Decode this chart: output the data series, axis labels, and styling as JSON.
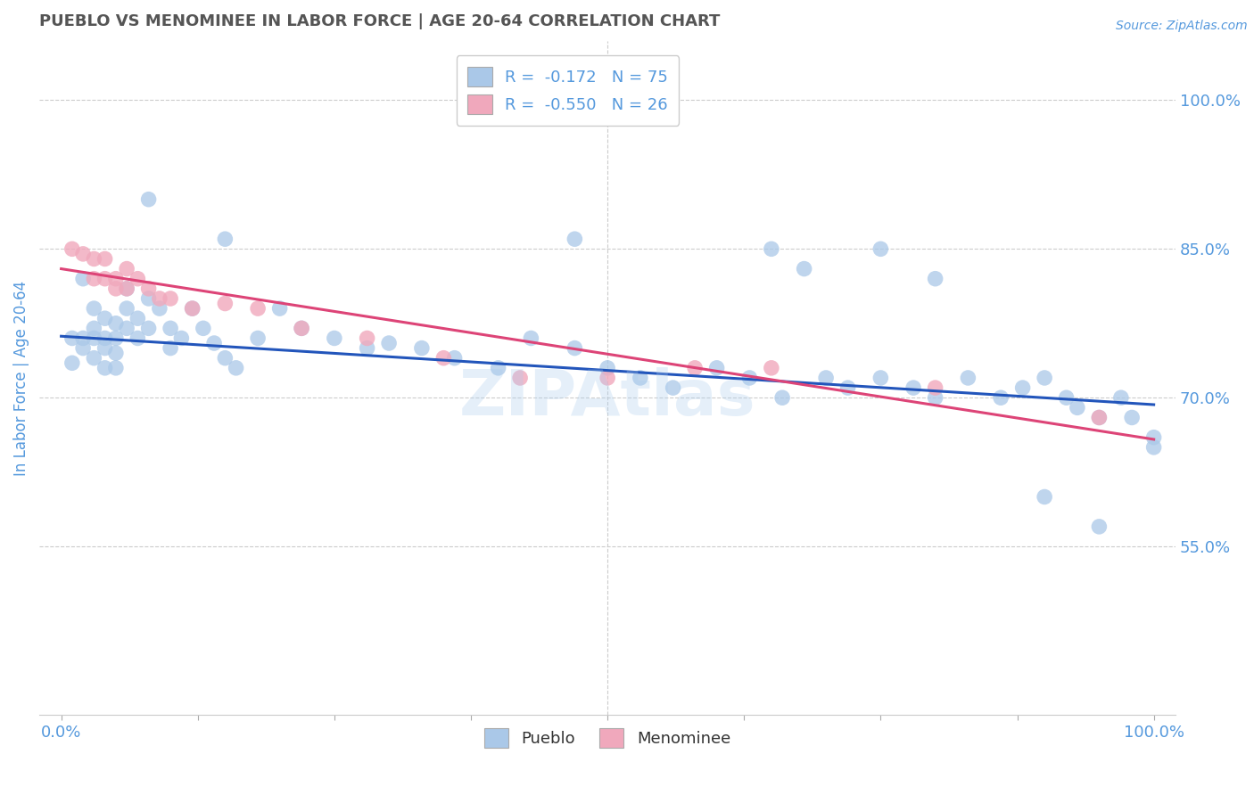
{
  "title": "PUEBLO VS MENOMINEE IN LABOR FORCE | AGE 20-64 CORRELATION CHART",
  "source_text": "Source: ZipAtlas.com",
  "ylabel": "In Labor Force | Age 20-64",
  "watermark": "ZIPAtlas",
  "xlim": [
    -0.02,
    1.02
  ],
  "ylim": [
    0.38,
    1.06
  ],
  "right_yticks": [
    0.55,
    0.7,
    0.85,
    1.0
  ],
  "right_yticklabels": [
    "55.0%",
    "70.0%",
    "85.0%",
    "100.0%"
  ],
  "blue_R": -0.172,
  "blue_N": 75,
  "pink_R": -0.55,
  "pink_N": 26,
  "blue_color": "#aac8e8",
  "pink_color": "#f0a8bc",
  "blue_line_color": "#2255bb",
  "pink_line_color": "#dd4477",
  "legend_label_blue": "Pueblo",
  "legend_label_pink": "Menominee",
  "background_color": "#ffffff",
  "grid_color": "#cccccc",
  "title_color": "#555555",
  "axis_label_color": "#5599dd",
  "blue_trend_y_start": 0.762,
  "blue_trend_y_end": 0.693,
  "pink_trend_y_start": 0.83,
  "pink_trend_y_end": 0.658,
  "blue_x": [
    0.01,
    0.01,
    0.02,
    0.02,
    0.02,
    0.03,
    0.03,
    0.03,
    0.03,
    0.04,
    0.04,
    0.04,
    0.04,
    0.05,
    0.05,
    0.05,
    0.05,
    0.06,
    0.06,
    0.06,
    0.07,
    0.07,
    0.08,
    0.08,
    0.09,
    0.1,
    0.1,
    0.11,
    0.12,
    0.13,
    0.14,
    0.15,
    0.16,
    0.18,
    0.2,
    0.22,
    0.25,
    0.28,
    0.3,
    0.33,
    0.36,
    0.4,
    0.43,
    0.47,
    0.5,
    0.53,
    0.56,
    0.6,
    0.63,
    0.66,
    0.7,
    0.72,
    0.75,
    0.78,
    0.8,
    0.83,
    0.86,
    0.88,
    0.9,
    0.92,
    0.93,
    0.95,
    0.97,
    0.98,
    1.0,
    0.08,
    0.15,
    0.47,
    0.65,
    0.68,
    0.75,
    0.8,
    0.9,
    0.95,
    1.0
  ],
  "blue_y": [
    0.76,
    0.735,
    0.82,
    0.76,
    0.75,
    0.79,
    0.77,
    0.76,
    0.74,
    0.78,
    0.76,
    0.75,
    0.73,
    0.775,
    0.76,
    0.745,
    0.73,
    0.81,
    0.79,
    0.77,
    0.78,
    0.76,
    0.8,
    0.77,
    0.79,
    0.77,
    0.75,
    0.76,
    0.79,
    0.77,
    0.755,
    0.74,
    0.73,
    0.76,
    0.79,
    0.77,
    0.76,
    0.75,
    0.755,
    0.75,
    0.74,
    0.73,
    0.76,
    0.75,
    0.73,
    0.72,
    0.71,
    0.73,
    0.72,
    0.7,
    0.72,
    0.71,
    0.72,
    0.71,
    0.7,
    0.72,
    0.7,
    0.71,
    0.72,
    0.7,
    0.69,
    0.68,
    0.7,
    0.68,
    0.66,
    0.9,
    0.86,
    0.86,
    0.85,
    0.83,
    0.85,
    0.82,
    0.6,
    0.57,
    0.65
  ],
  "pink_x": [
    0.01,
    0.02,
    0.03,
    0.03,
    0.04,
    0.04,
    0.05,
    0.05,
    0.06,
    0.06,
    0.07,
    0.08,
    0.09,
    0.1,
    0.12,
    0.15,
    0.18,
    0.22,
    0.28,
    0.35,
    0.42,
    0.5,
    0.58,
    0.65,
    0.8,
    0.95
  ],
  "pink_y": [
    0.85,
    0.845,
    0.84,
    0.82,
    0.84,
    0.82,
    0.82,
    0.81,
    0.83,
    0.81,
    0.82,
    0.81,
    0.8,
    0.8,
    0.79,
    0.795,
    0.79,
    0.77,
    0.76,
    0.74,
    0.72,
    0.72,
    0.73,
    0.73,
    0.71,
    0.68
  ]
}
